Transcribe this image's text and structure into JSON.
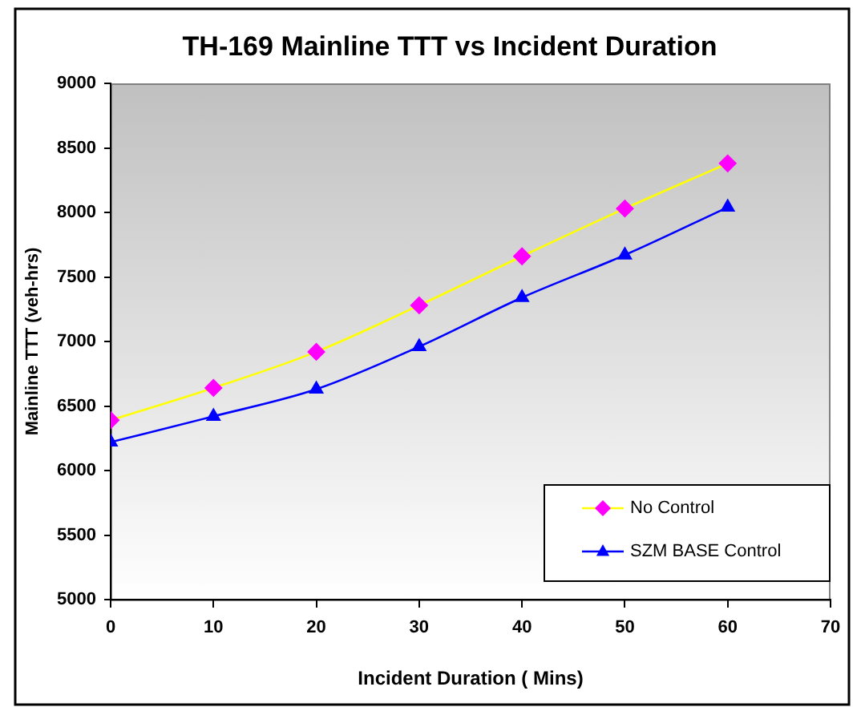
{
  "chart_data": {
    "type": "line",
    "title": "TH-169 Mainline TTT vs Incident Duration",
    "xlabel": "Incident Duration ( Mins)",
    "ylabel": "Mainline TTT (veh-hrs)",
    "x": [
      0,
      10,
      20,
      30,
      40,
      50,
      60
    ],
    "series": [
      {
        "name": "No Control",
        "color": "#ffff00",
        "colors": [
          "#ff00ff",
          "#ff00ff",
          "#ff00ff",
          "#ff00ff",
          "#ff00ff",
          "#ff00ff",
          "#ff00ff"
        ],
        "marker": "diamond",
        "values": [
          6390,
          6640,
          6920,
          7280,
          7660,
          8030,
          8380
        ]
      },
      {
        "name": "SZM BASE Control",
        "color": "#0000ff",
        "marker": "triangle",
        "values": [
          6220,
          6420,
          6630,
          6960,
          7340,
          7670,
          8040
        ]
      }
    ],
    "xlim": [
      0,
      70
    ],
    "xticks": [
      0,
      10,
      20,
      30,
      40,
      50,
      60,
      70
    ],
    "ylim": [
      5000,
      9000
    ],
    "yticks": [
      5000,
      5500,
      6000,
      6500,
      7000,
      7500,
      8000,
      8500,
      9000
    ],
    "grid": false,
    "legend": "bottom right",
    "line_style": "solid"
  }
}
